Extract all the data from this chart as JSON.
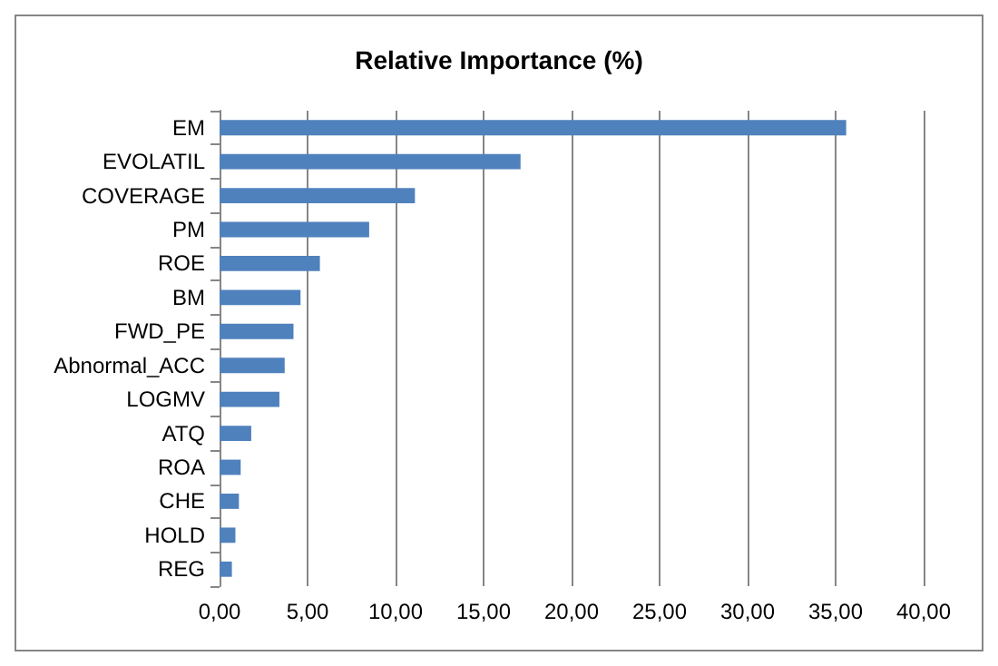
{
  "chart_data": {
    "type": "bar",
    "orientation": "horizontal",
    "title": "Relative Importance (%)",
    "categories": [
      "EM",
      "EVOLATIL",
      "COVERAGE",
      "PM",
      "ROE",
      "BM",
      "FWD_PE",
      "Abnormal_ACC",
      "LOGMV",
      "ATQ",
      "ROA",
      "CHE",
      "HOLD",
      "REG"
    ],
    "values": [
      35.6,
      17.1,
      11.1,
      8.5,
      5.7,
      4.6,
      4.2,
      3.7,
      3.4,
      1.8,
      1.2,
      1.1,
      0.9,
      0.7
    ],
    "color": "#4f81bd",
    "xlim": [
      0,
      40
    ],
    "xticks": [
      {
        "value": 0,
        "label": "0,00"
      },
      {
        "value": 5,
        "label": "5,00"
      },
      {
        "value": 10,
        "label": "10,00"
      },
      {
        "value": 15,
        "label": "15,00"
      },
      {
        "value": 20,
        "label": "20,00"
      },
      {
        "value": 25,
        "label": "25,00"
      },
      {
        "value": 30,
        "label": "30,00"
      },
      {
        "value": 35,
        "label": "35,00"
      },
      {
        "value": 40,
        "label": "40,00"
      }
    ],
    "grid": "x"
  }
}
